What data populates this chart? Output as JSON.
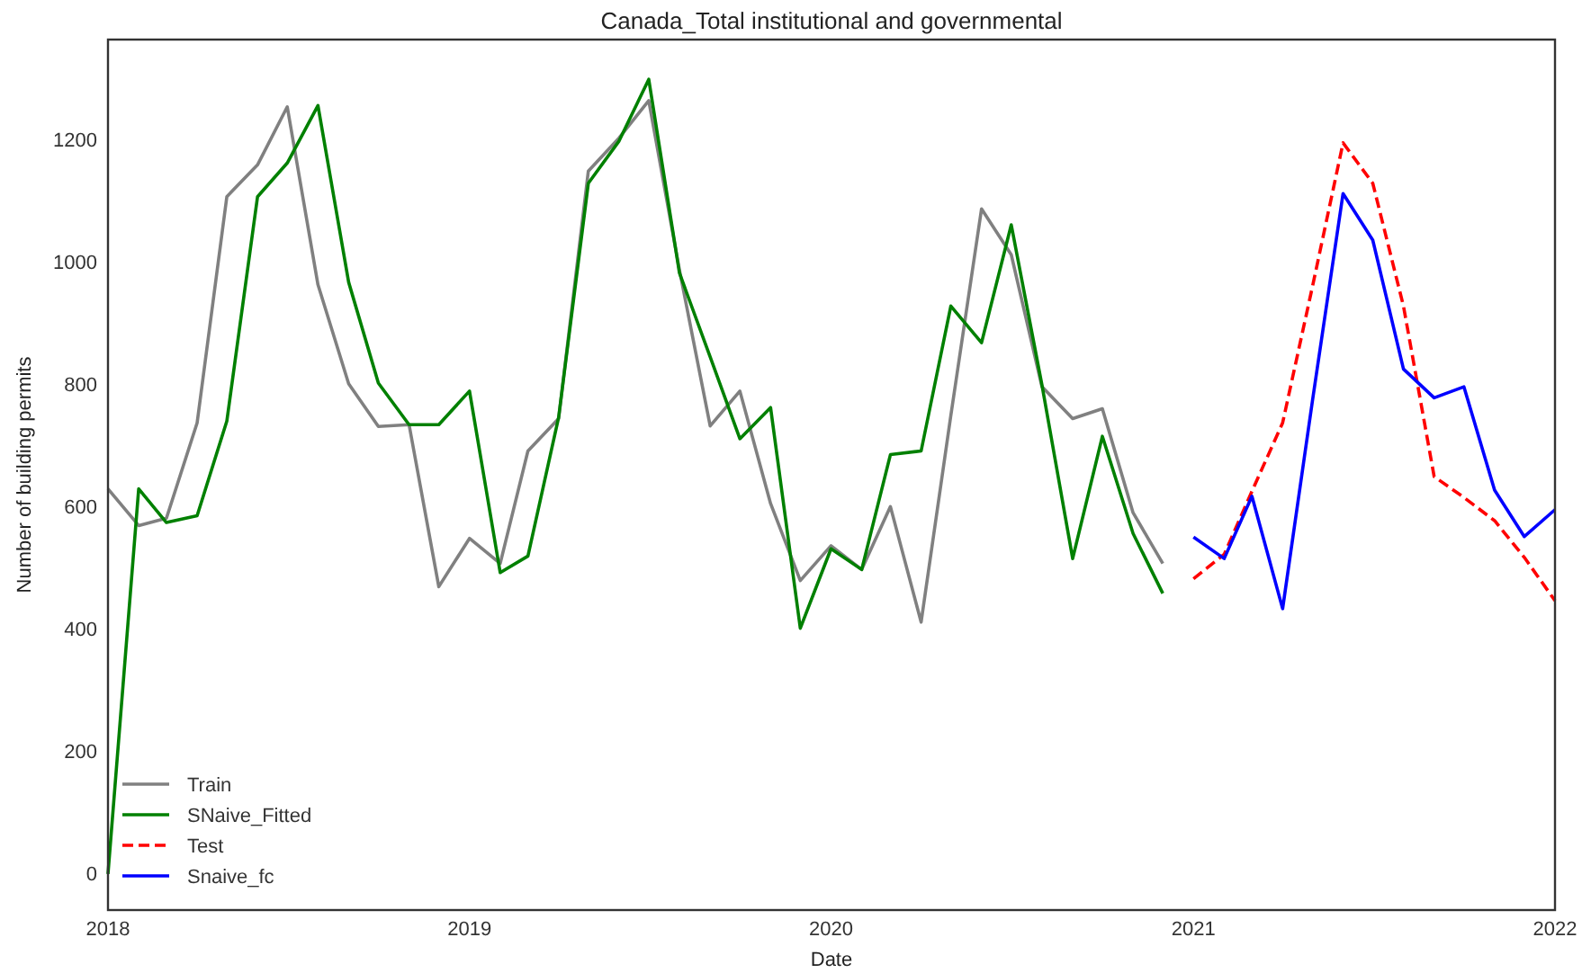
{
  "chart_data": {
    "type": "line",
    "title": "Canada_Total institutional and governmental",
    "xlabel": "Date",
    "ylabel": "Number of building permits",
    "xlim": [
      "2018",
      "2022"
    ],
    "xticks": [
      "2018",
      "2019",
      "2020",
      "2021",
      "2022"
    ],
    "ylim": [
      -59,
      1365
    ],
    "yticks": [
      0,
      200,
      400,
      600,
      800,
      1000,
      1200
    ],
    "grid": false,
    "legend": "bottom left",
    "series": [
      {
        "name": "Train",
        "color": "#808080",
        "line_style": "solid",
        "x": [
          "2018-01",
          "2018-02",
          "2018-03",
          "2018-04",
          "2018-05",
          "2018-06",
          "2018-07",
          "2018-08",
          "2018-09",
          "2018-10",
          "2018-11",
          "2018-12",
          "2019-01",
          "2019-02",
          "2019-03",
          "2019-04",
          "2019-05",
          "2019-06",
          "2019-07",
          "2019-08",
          "2019-09",
          "2019-10",
          "2019-11",
          "2019-12",
          "2020-01",
          "2020-02",
          "2020-03",
          "2020-04",
          "2020-05",
          "2020-06",
          "2020-07",
          "2020-08",
          "2020-09",
          "2020-10",
          "2020-11",
          "2020-12"
        ],
        "values": [
          630,
          570,
          582,
          738,
          1108,
          1160,
          1255,
          964,
          802,
          732,
          735,
          470,
          549,
          508,
          692,
          745,
          1150,
          1204,
          1265,
          988,
          733,
          790,
          606,
          480,
          537,
          498,
          601,
          412,
          750,
          1088,
          1013,
          797,
          745,
          761,
          591,
          508
        ]
      },
      {
        "name": "SNaive_Fitted",
        "color": "#008000",
        "line_style": "solid",
        "x": [
          "2018-01",
          "2018-02",
          "2018-03",
          "2018-04",
          "2018-05",
          "2018-06",
          "2018-07",
          "2018-08",
          "2018-09",
          "2018-10",
          "2018-11",
          "2018-12",
          "2019-01",
          "2019-02",
          "2019-03",
          "2019-04",
          "2019-05",
          "2019-06",
          "2019-07",
          "2019-08",
          "2019-09",
          "2019-10",
          "2019-11",
          "2019-12",
          "2020-01",
          "2020-02",
          "2020-03",
          "2020-04",
          "2020-05",
          "2020-06",
          "2020-07",
          "2020-08",
          "2020-09",
          "2020-10",
          "2020-11",
          "2020-12"
        ],
        "values": [
          0,
          630,
          575,
          586,
          741,
          1108,
          1163,
          1257,
          968,
          803,
          735,
          735,
          790,
          493,
          520,
          747,
          1130,
          1199,
          1300,
          983,
          846,
          712,
          763,
          402,
          532,
          498,
          686,
          692,
          929,
          869,
          1062,
          800,
          516,
          716,
          557,
          459
        ]
      },
      {
        "name": "Test",
        "color": "#ff0000",
        "line_style": "dashed",
        "x": [
          "2021-01",
          "2021-02",
          "2021-03",
          "2021-04",
          "2021-05",
          "2021-06",
          "2021-07",
          "2021-08",
          "2021-09",
          "2021-10",
          "2021-11",
          "2021-12",
          "2022-01"
        ],
        "values": [
          483,
          523,
          626,
          738,
          960,
          1196,
          1130,
          929,
          650,
          616,
          578,
          518,
          447
        ]
      },
      {
        "name": "Snaive_fc",
        "color": "#0000ff",
        "line_style": "solid",
        "x": [
          "2021-01",
          "2021-02",
          "2021-03",
          "2021-04",
          "2021-05",
          "2021-06",
          "2021-07",
          "2021-08",
          "2021-09",
          "2021-10",
          "2021-11",
          "2021-12",
          "2022-01"
        ],
        "values": [
          551,
          516,
          618,
          434,
          773,
          1113,
          1037,
          826,
          779,
          797,
          628,
          552,
          596
        ]
      }
    ]
  }
}
